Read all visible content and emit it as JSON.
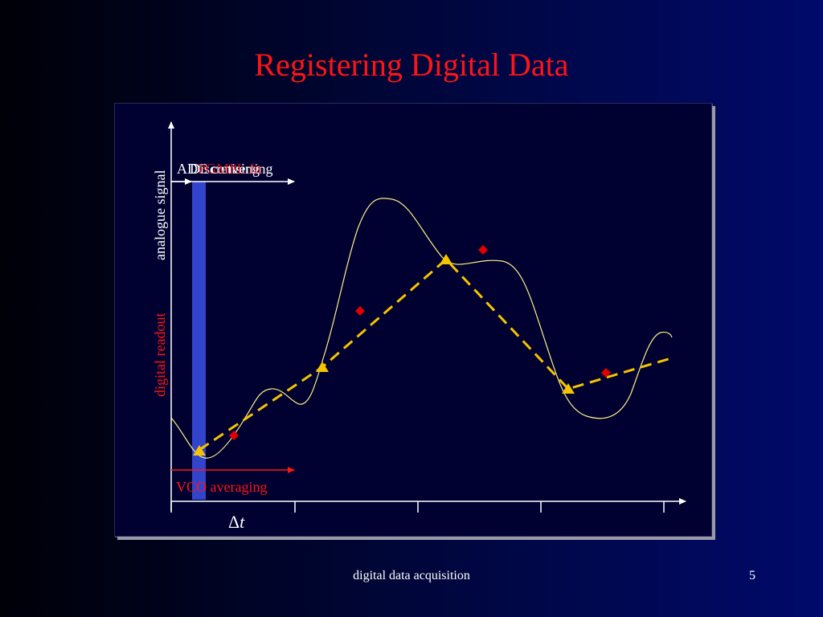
{
  "slide": {
    "title": "Registering Digital Data",
    "footer": "digital data acquisition",
    "page_number": "5"
  },
  "diagram": {
    "y_labels": {
      "analogue": "analogue signal",
      "digital": "digital readout"
    },
    "top_labels": {
      "layer1": "ADC converting",
      "layer2": "Discretising",
      "layer3": "PGMPL fit"
    },
    "bottom_label": "VCO averaging",
    "x_axis_label_prefix": "Δ",
    "x_axis_label_var": "t",
    "colors": {
      "background": "#000130",
      "title": "#ff1414",
      "analogue_curve": "#ffee88",
      "fit_line": "#f5c400",
      "sample_triangles": "#f5c400",
      "readout_diamonds": "#e00000",
      "window_bar": "#3344cc"
    }
  }
}
